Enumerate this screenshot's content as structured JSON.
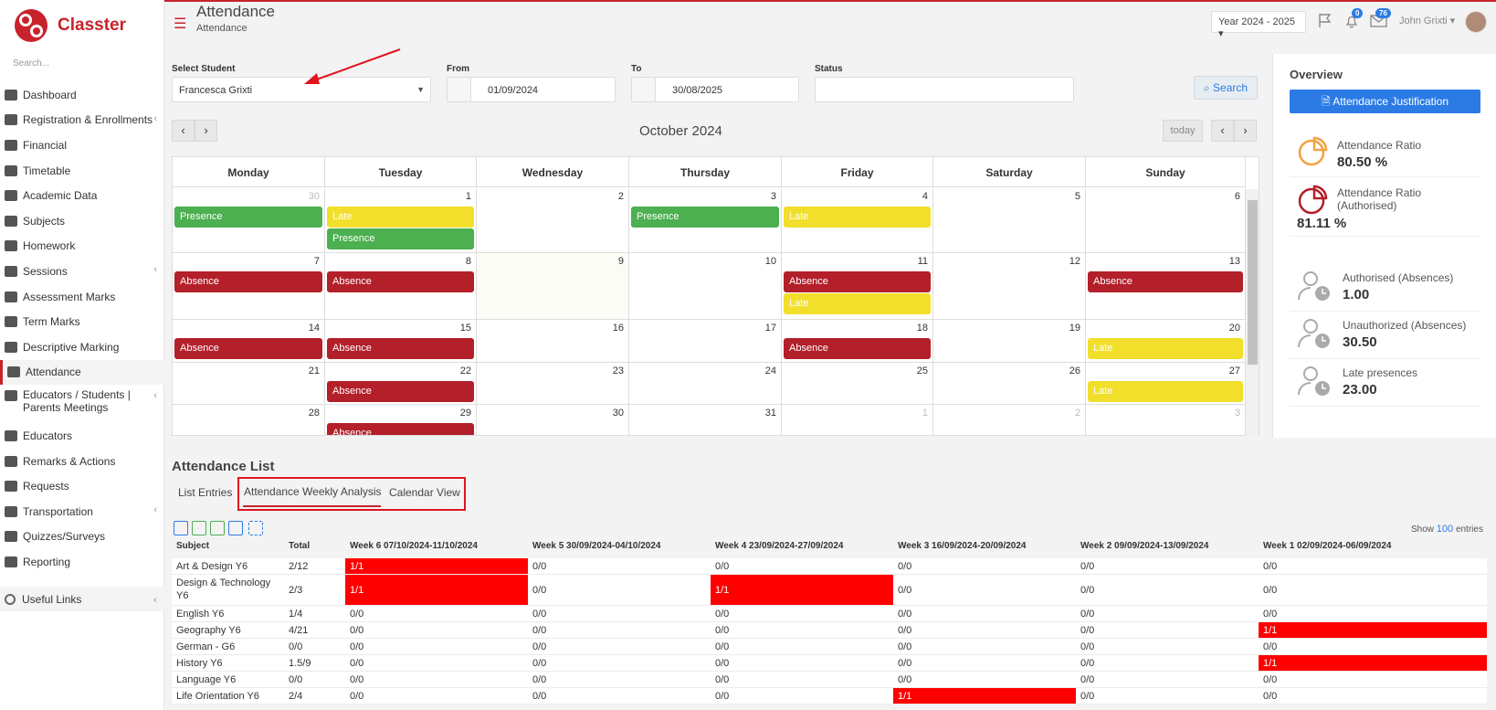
{
  "brand": {
    "name": "Classter"
  },
  "sidebar": {
    "search_placeholder": "Search...",
    "items": [
      {
        "label": "Dashboard",
        "icon": "laptop-icon"
      },
      {
        "label": "Registration & Enrollments",
        "icon": "bank-icon",
        "arrow": true
      },
      {
        "label": "Financial",
        "icon": "coins-icon"
      },
      {
        "label": "Timetable",
        "icon": "calendar-icon"
      },
      {
        "label": "Academic Data",
        "icon": "academic-icon"
      },
      {
        "label": "Subjects",
        "icon": "book-icon"
      },
      {
        "label": "Homework",
        "icon": "list-icon"
      },
      {
        "label": "Sessions",
        "icon": "sessions-icon",
        "arrow": true
      },
      {
        "label": "Assessment Marks",
        "icon": "edit-icon"
      },
      {
        "label": "Term Marks",
        "icon": "book-icon"
      },
      {
        "label": "Descriptive Marking",
        "icon": "marking-icon"
      },
      {
        "label": "Attendance",
        "icon": "attendance-icon",
        "active": true
      },
      {
        "label": "Educators / Students | Parents Meetings",
        "icon": "meetings-icon",
        "arrow": true
      },
      {
        "label": "Educators",
        "icon": "users-icon"
      },
      {
        "label": "Remarks & Actions",
        "icon": "remarks-icon"
      },
      {
        "label": "Requests",
        "icon": "requests-icon"
      },
      {
        "label": "Transportation",
        "icon": "bus-icon",
        "arrow": true
      },
      {
        "label": "Quizzes/Surveys",
        "icon": "quiz-icon"
      },
      {
        "label": "Reporting",
        "icon": "print-icon"
      }
    ],
    "useful_links": "Useful Links"
  },
  "header": {
    "title": "Attendance",
    "subtitle": "Attendance",
    "year": "Year 2024 - 2025",
    "bell_count": "0",
    "mail_count": "76",
    "user": "John Grixti"
  },
  "filters": {
    "student_label": "Select Student",
    "student_value": "Francesca Grixti",
    "from_label": "From",
    "from_value": "01/09/2024",
    "to_label": "To",
    "to_value": "30/08/2025",
    "status_label": "Status",
    "status_value": "",
    "search_label": "Search"
  },
  "calendar": {
    "month": "October 2024",
    "today_label": "today",
    "days": [
      "Monday",
      "Tuesday",
      "Wednesday",
      "Thursday",
      "Friday",
      "Saturday",
      "Sunday"
    ],
    "weeks": [
      [
        {
          "d": "30",
          "o": true,
          "e": [
            "Presence"
          ]
        },
        {
          "d": "1",
          "e": [
            "Late",
            "Presence"
          ]
        },
        {
          "d": "2",
          "e": []
        },
        {
          "d": "3",
          "e": [
            "Presence"
          ]
        },
        {
          "d": "4",
          "e": [
            "Late"
          ]
        },
        {
          "d": "5",
          "e": []
        },
        {
          "d": "6",
          "e": []
        }
      ],
      [
        {
          "d": "7",
          "e": [
            "Absence"
          ]
        },
        {
          "d": "8",
          "e": [
            "Absence"
          ]
        },
        {
          "d": "9",
          "e": [],
          "t": true
        },
        {
          "d": "10",
          "e": []
        },
        {
          "d": "11",
          "e": [
            "Absence",
            "Late"
          ]
        },
        {
          "d": "12",
          "e": []
        },
        {
          "d": "13",
          "e": [
            "Absence"
          ]
        }
      ],
      [
        {
          "d": "14",
          "e": [
            "Absence"
          ]
        },
        {
          "d": "15",
          "e": [
            "Absence"
          ]
        },
        {
          "d": "16",
          "e": []
        },
        {
          "d": "17",
          "e": []
        },
        {
          "d": "18",
          "e": [
            "Absence"
          ]
        },
        {
          "d": "19",
          "e": []
        },
        {
          "d": "20",
          "e": [
            "Late"
          ]
        }
      ],
      [
        {
          "d": "21",
          "e": []
        },
        {
          "d": "22",
          "e": [
            "Absence"
          ]
        },
        {
          "d": "23",
          "e": []
        },
        {
          "d": "24",
          "e": []
        },
        {
          "d": "25",
          "e": []
        },
        {
          "d": "26",
          "e": []
        },
        {
          "d": "27",
          "e": [
            "Late"
          ]
        }
      ],
      [
        {
          "d": "28",
          "e": []
        },
        {
          "d": "29",
          "e": [
            "Absence"
          ]
        },
        {
          "d": "30",
          "e": []
        },
        {
          "d": "31",
          "e": []
        },
        {
          "d": "1",
          "o": true,
          "e": []
        },
        {
          "d": "2",
          "o": true,
          "e": []
        },
        {
          "d": "3",
          "o": true,
          "e": []
        }
      ]
    ]
  },
  "overview": {
    "title": "Overview",
    "button": "Attendance Justification",
    "ratio_label": "Attendance Ratio",
    "ratio_value": "80.50 %",
    "ratio_auth_label": "Attendance Ratio (Authorised)",
    "ratio_auth_value": "81.11 %",
    "authorised_label": "Authorised (Absences)",
    "authorised_value": "1.00",
    "unauthorised_label": "Unauthorized (Absences)",
    "unauthorised_value": "30.50",
    "late_label": "Late presences",
    "late_value": "23.00"
  },
  "list": {
    "title": "Attendance List",
    "tabs": [
      "List Entries",
      "Attendance Weekly Analysis",
      "Calendar View"
    ],
    "show_label": "Show",
    "show_count": "100",
    "entries_label": "entries",
    "headers": [
      "Subject",
      "Total",
      "Week 6 07/10/2024-11/10/2024",
      "Week 5 30/09/2024-04/10/2024",
      "Week 4 23/09/2024-27/09/2024",
      "Week 3 16/09/2024-20/09/2024",
      "Week 2 09/09/2024-13/09/2024",
      "Week 1 02/09/2024-06/09/2024"
    ],
    "rows": [
      {
        "cells": [
          "Art & Design Y6",
          "2/12",
          "1/1",
          "0/0",
          "0/0",
          "0/0",
          "0/0",
          "0/0"
        ],
        "red": [
          2
        ]
      },
      {
        "cells": [
          "Design & Technology Y6",
          "2/3",
          "1/1",
          "0/0",
          "1/1",
          "0/0",
          "0/0",
          "0/0"
        ],
        "red": [
          2,
          4
        ],
        "tall": true
      },
      {
        "cells": [
          "English Y6",
          "1/4",
          "0/0",
          "0/0",
          "0/0",
          "0/0",
          "0/0",
          "0/0"
        ],
        "red": []
      },
      {
        "cells": [
          "Geography Y6",
          "4/21",
          "0/0",
          "0/0",
          "0/0",
          "0/0",
          "0/0",
          "1/1"
        ],
        "red": [
          7
        ]
      },
      {
        "cells": [
          "German - G6",
          "0/0",
          "0/0",
          "0/0",
          "0/0",
          "0/0",
          "0/0",
          "0/0"
        ],
        "red": []
      },
      {
        "cells": [
          "History Y6",
          "1.5/9",
          "0/0",
          "0/0",
          "0/0",
          "0/0",
          "0/0",
          "1/1"
        ],
        "red": [
          7
        ]
      },
      {
        "cells": [
          "Language Y6",
          "0/0",
          "0/0",
          "0/0",
          "0/0",
          "0/0",
          "0/0",
          "0/0"
        ],
        "red": []
      },
      {
        "cells": [
          "Life Orientation Y6",
          "2/4",
          "0/0",
          "0/0",
          "0/0",
          "1/1",
          "0/0",
          "0/0"
        ],
        "red": [
          5
        ]
      }
    ]
  },
  "colors": {
    "brand": "#c8232c",
    "presence": "#4caf50",
    "late": "#f1df2c",
    "absence": "#b3202a",
    "accent": "#2c7be5",
    "highlight": "#ff0000"
  }
}
